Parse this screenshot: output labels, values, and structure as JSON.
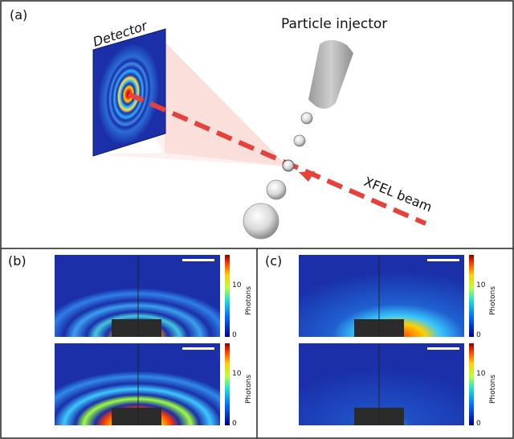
{
  "panel_a": {
    "label": "(a)",
    "detector_label": "Detector",
    "injector_label": "Particle injector",
    "beam_label": "XFEL beam"
  },
  "panel_b": {
    "label": "(b)"
  },
  "panel_c": {
    "label": "(c)"
  },
  "colorbar": {
    "title": "Photons",
    "ticks": [
      "0",
      "10"
    ]
  },
  "colors": {
    "beam": "#e8403a",
    "cone": "#f6c8c4",
    "detector_bg": "#1a2fa8",
    "particle": "#d8d8d8",
    "nozzle": "#b8b8b8"
  },
  "icons": {
    "detector": "detector-panel-icon",
    "nozzle": "particle-injector-nozzle-icon",
    "particle": "virus-particle-icon"
  }
}
